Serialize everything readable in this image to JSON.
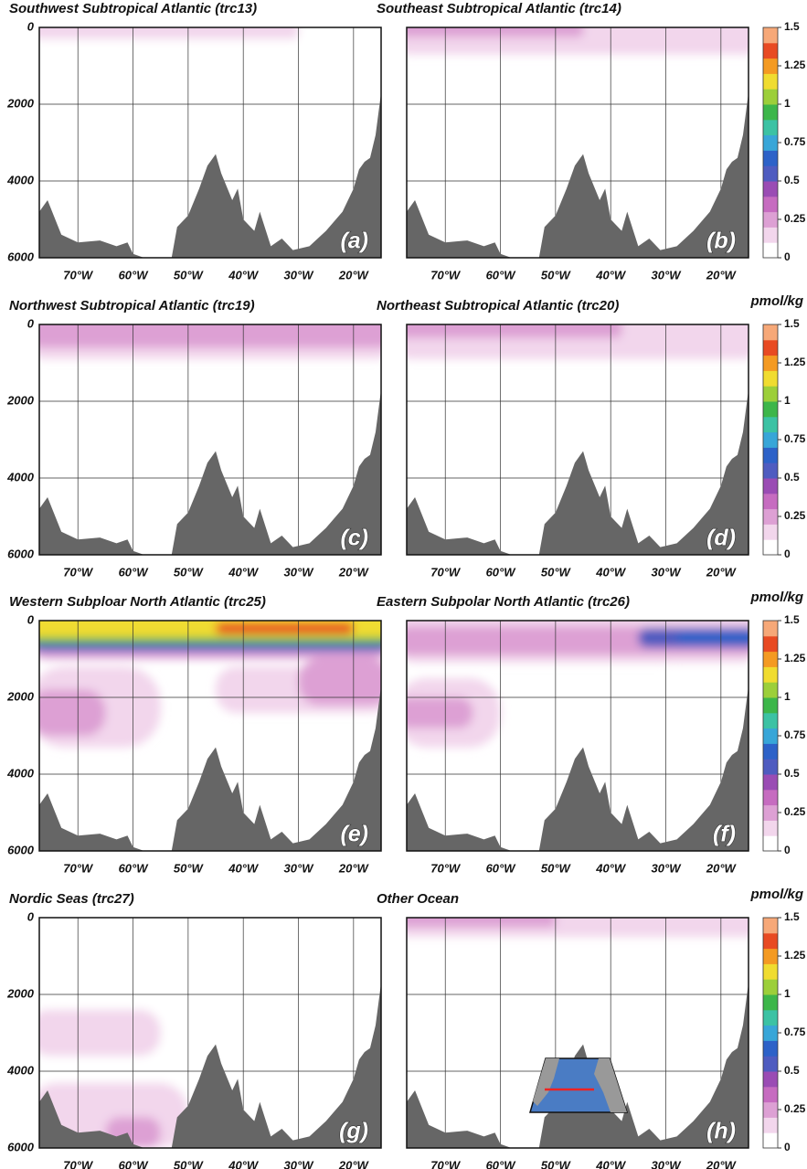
{
  "bathymetry": {
    "lon": [
      -77,
      -75.5,
      -73,
      -70,
      -66,
      -63,
      -61,
      -60,
      -58,
      -53,
      -52,
      -50,
      -48,
      -46.5,
      -45,
      -44,
      -42,
      -41,
      -40,
      -38,
      -37,
      -35,
      -33,
      -31,
      -28,
      -25,
      -22,
      -20,
      -19,
      -18,
      -17,
      -16,
      -15
    ],
    "depth": [
      4800,
      4500,
      5400,
      5600,
      5550,
      5700,
      5600,
      5900,
      6000,
      6000,
      5200,
      4900,
      4200,
      3600,
      3300,
      3800,
      4500,
      4200,
      5000,
      5300,
      4800,
      5700,
      5500,
      5800,
      5700,
      5300,
      4800,
      4200,
      3700,
      3500,
      3400,
      2800,
      1700
    ]
  },
  "colorbar": {
    "label": "pmol/kg",
    "lim": [
      0,
      1.5
    ],
    "ticks": [
      0,
      0.25,
      0.5,
      0.75,
      1,
      1.25,
      1.5
    ],
    "colors": [
      "#ffffff",
      "#f2d6ec",
      "#dda0d4",
      "#c66cc0",
      "#9a4cb4",
      "#4f5cc0",
      "#2d62c8",
      "#38a6d8",
      "#3cc2a4",
      "#3db64a",
      "#9ccf3a",
      "#f0dc30",
      "#f49a22",
      "#e84a22",
      "#f6a878"
    ]
  },
  "chart_data": [
    {
      "type": "section",
      "title": "Southwest Subtropical Atlantic (trc13)",
      "panel_label": "(a)",
      "xlim": [
        -77,
        -15
      ],
      "ylim": [
        0,
        6000
      ],
      "yticks": [
        0,
        2000,
        4000,
        6000
      ],
      "xticks": [
        {
          "value": -70,
          "label": "70°W"
        },
        {
          "value": -60,
          "label": "60°W"
        },
        {
          "value": -50,
          "label": "50°W"
        },
        {
          "value": -40,
          "label": "40°W"
        },
        {
          "value": -30,
          "label": "30°W"
        },
        {
          "value": -20,
          "label": "20°W"
        }
      ],
      "fields": [
        {
          "lon": [
            -77,
            -15
          ],
          "depth": [
            0,
            700
          ],
          "value": 0.08
        },
        {
          "lon": [
            -77,
            -30
          ],
          "depth": [
            0,
            300
          ],
          "value": 0.15
        }
      ]
    },
    {
      "type": "section",
      "title": "Southeast Subtropical Atlantic (trc14)",
      "panel_label": "(b)",
      "xlim": [
        -77,
        -15
      ],
      "ylim": [
        0,
        6000
      ],
      "xticks": [
        {
          "value": -70,
          "label": "70°W"
        },
        {
          "value": -60,
          "label": "60°W"
        },
        {
          "value": -50,
          "label": "50°W"
        },
        {
          "value": -40,
          "label": "40°W"
        },
        {
          "value": -30,
          "label": "30°W"
        },
        {
          "value": -20,
          "label": "20°W"
        }
      ],
      "fields": [
        {
          "lon": [
            -77,
            -15
          ],
          "depth": [
            0,
            700
          ],
          "value": 0.1
        },
        {
          "lon": [
            -77,
            -15
          ],
          "depth": [
            0,
            450
          ],
          "value": 0.18
        },
        {
          "lon": [
            -77,
            -45
          ],
          "depth": [
            0,
            250
          ],
          "value": 0.28
        }
      ]
    },
    {
      "type": "section",
      "title": "Northwest Subtropical Atlantic (trc19)",
      "panel_label": "(c)",
      "xlim": [
        -77,
        -15
      ],
      "ylim": [
        0,
        6000
      ],
      "yticks": [
        0,
        2000,
        4000,
        6000
      ],
      "xticks": [
        {
          "value": -70,
          "label": "70°W"
        },
        {
          "value": -60,
          "label": "60°W"
        },
        {
          "value": -50,
          "label": "50°W"
        },
        {
          "value": -40,
          "label": "40°W"
        },
        {
          "value": -30,
          "label": "30°W"
        },
        {
          "value": -20,
          "label": "20°W"
        }
      ],
      "fields": [
        {
          "lon": [
            -77,
            -15
          ],
          "depth": [
            0,
            900
          ],
          "value": 0.1
        },
        {
          "lon": [
            -77,
            -15
          ],
          "depth": [
            0,
            600
          ],
          "value": 0.2
        },
        {
          "lon": [
            -77,
            -15
          ],
          "depth": [
            0,
            400
          ],
          "value": 0.3
        }
      ]
    },
    {
      "type": "section",
      "title": "Northeast Subtropical Atlantic (trc20)",
      "panel_label": "(d)",
      "xlim": [
        -77,
        -15
      ],
      "ylim": [
        0,
        6000
      ],
      "xticks": [
        {
          "value": -70,
          "label": "70°W"
        },
        {
          "value": -60,
          "label": "60°W"
        },
        {
          "value": -50,
          "label": "50°W"
        },
        {
          "value": -40,
          "label": "40°W"
        },
        {
          "value": -30,
          "label": "30°W"
        },
        {
          "value": -20,
          "label": "20°W"
        }
      ],
      "fields": [
        {
          "lon": [
            -77,
            -15
          ],
          "depth": [
            0,
            900
          ],
          "value": 0.1
        },
        {
          "lon": [
            -77,
            -15
          ],
          "depth": [
            0,
            550
          ],
          "value": 0.18
        },
        {
          "lon": [
            -77,
            -38
          ],
          "depth": [
            0,
            350
          ],
          "value": 0.3
        }
      ]
    },
    {
      "type": "section",
      "title": "Western Subploar North Atlantic (trc25)",
      "panel_label": "(e)",
      "xlim": [
        -77,
        -15
      ],
      "ylim": [
        0,
        6000
      ],
      "yticks": [
        0,
        2000,
        4000,
        6000
      ],
      "xticks": [
        {
          "value": -70,
          "label": "70°W"
        },
        {
          "value": -60,
          "label": "60°W"
        },
        {
          "value": -50,
          "label": "50°W"
        },
        {
          "value": -40,
          "label": "40°W"
        },
        {
          "value": -30,
          "label": "30°W"
        },
        {
          "value": -20,
          "label": "20°W"
        }
      ],
      "fields": [
        {
          "lon": [
            -77,
            -15
          ],
          "depth": [
            4300,
            6000
          ],
          "value": 0.05
        },
        {
          "lon": [
            -77,
            -55
          ],
          "depth": [
            1200,
            3300
          ],
          "value": 0.15
        },
        {
          "lon": [
            -77,
            -65
          ],
          "depth": [
            1800,
            3000
          ],
          "value": 0.3
        },
        {
          "lon": [
            -45,
            -15
          ],
          "depth": [
            1200,
            2400
          ],
          "value": 0.15
        },
        {
          "lon": [
            -30,
            -15
          ],
          "depth": [
            1000,
            2200
          ],
          "value": 0.22
        },
        {
          "lon": [
            -77,
            -15
          ],
          "depth": [
            0,
            1000
          ],
          "value": 0.25
        },
        {
          "lon": [
            -77,
            -15
          ],
          "depth": [
            0,
            800
          ],
          "value": 0.55
        },
        {
          "lon": [
            -77,
            -15
          ],
          "depth": [
            0,
            600
          ],
          "value": 0.9
        },
        {
          "lon": [
            -77,
            -15
          ],
          "depth": [
            0,
            450
          ],
          "value": 1.2
        },
        {
          "lon": [
            -45,
            -20
          ],
          "depth": [
            50,
            350
          ],
          "value": 1.4
        }
      ]
    },
    {
      "type": "section",
      "title": "Eastern Subpolar North Atlantic (trc26)",
      "panel_label": "(f)",
      "xlim": [
        -77,
        -15
      ],
      "ylim": [
        0,
        6000
      ],
      "xticks": [
        {
          "value": -70,
          "label": "70°W"
        },
        {
          "value": -60,
          "label": "60°W"
        },
        {
          "value": -50,
          "label": "50°W"
        },
        {
          "value": -40,
          "label": "40°W"
        },
        {
          "value": -30,
          "label": "30°W"
        },
        {
          "value": -20,
          "label": "20°W"
        }
      ],
      "fields": [
        {
          "lon": [
            -77,
            -40
          ],
          "depth": [
            4500,
            6000
          ],
          "value": 0.05
        },
        {
          "lon": [
            -30,
            -15
          ],
          "depth": [
            1000,
            2000
          ],
          "value": 0.05
        },
        {
          "lon": [
            -77,
            -60
          ],
          "depth": [
            1500,
            3300
          ],
          "value": 0.1
        },
        {
          "lon": [
            -77,
            -65
          ],
          "depth": [
            2000,
            2800
          ],
          "value": 0.2
        },
        {
          "lon": [
            -77,
            -15
          ],
          "depth": [
            0,
            1100
          ],
          "value": 0.1
        },
        {
          "lon": [
            -77,
            -15
          ],
          "depth": [
            150,
            900
          ],
          "value": 0.28
        },
        {
          "lon": [
            -35,
            -15
          ],
          "depth": [
            200,
            700
          ],
          "value": 0.5
        },
        {
          "lon": [
            -28,
            -15
          ],
          "depth": [
            250,
            600
          ],
          "value": 0.7
        }
      ]
    },
    {
      "type": "section",
      "title": "Nordic Seas (trc27)",
      "panel_label": "(g)",
      "xlim": [
        -77,
        -15
      ],
      "ylim": [
        0,
        6000
      ],
      "yticks": [
        0,
        2000,
        4000,
        6000
      ],
      "xticks": [
        {
          "value": -70,
          "label": "70°W"
        },
        {
          "value": -60,
          "label": "60°W"
        },
        {
          "value": -50,
          "label": "50°W"
        },
        {
          "value": -40,
          "label": "40°W"
        },
        {
          "value": -30,
          "label": "30°W"
        },
        {
          "value": -20,
          "label": "20°W"
        }
      ],
      "fields": [
        {
          "lon": [
            -77,
            -45
          ],
          "depth": [
            1700,
            6000
          ],
          "value": 0.08
        },
        {
          "lon": [
            -77,
            -55
          ],
          "depth": [
            2400,
            3600
          ],
          "value": 0.15
        },
        {
          "lon": [
            -77,
            -50
          ],
          "depth": [
            4300,
            6000
          ],
          "value": 0.15
        },
        {
          "lon": [
            -65,
            -55
          ],
          "depth": [
            5200,
            6000
          ],
          "value": 0.25
        },
        {
          "lon": [
            -18,
            -15
          ],
          "depth": [
            1500,
            2800
          ],
          "value": 0.08
        }
      ]
    },
    {
      "type": "section",
      "title": "Other Ocean",
      "panel_label": "(h)",
      "xlim": [
        -77,
        -15
      ],
      "ylim": [
        0,
        6000
      ],
      "xticks": [
        {
          "value": -70,
          "label": "70°W"
        },
        {
          "value": -60,
          "label": "60°W"
        },
        {
          "value": -50,
          "label": "50°W"
        },
        {
          "value": -40,
          "label": "40°W"
        },
        {
          "value": -30,
          "label": "30°W"
        },
        {
          "value": -20,
          "label": "20°W"
        }
      ],
      "fields": [
        {
          "lon": [
            -77,
            -15
          ],
          "depth": [
            0,
            500
          ],
          "value": 0.1
        },
        {
          "lon": [
            -77,
            -50
          ],
          "depth": [
            0,
            250
          ],
          "value": 0.25
        },
        {
          "lon": [
            -77,
            -65
          ],
          "depth": [
            2000,
            2800
          ],
          "value": 0.05
        },
        {
          "lon": [
            -62,
            -50
          ],
          "depth": [
            5300,
            6000
          ],
          "value": 0.05
        }
      ]
    }
  ]
}
